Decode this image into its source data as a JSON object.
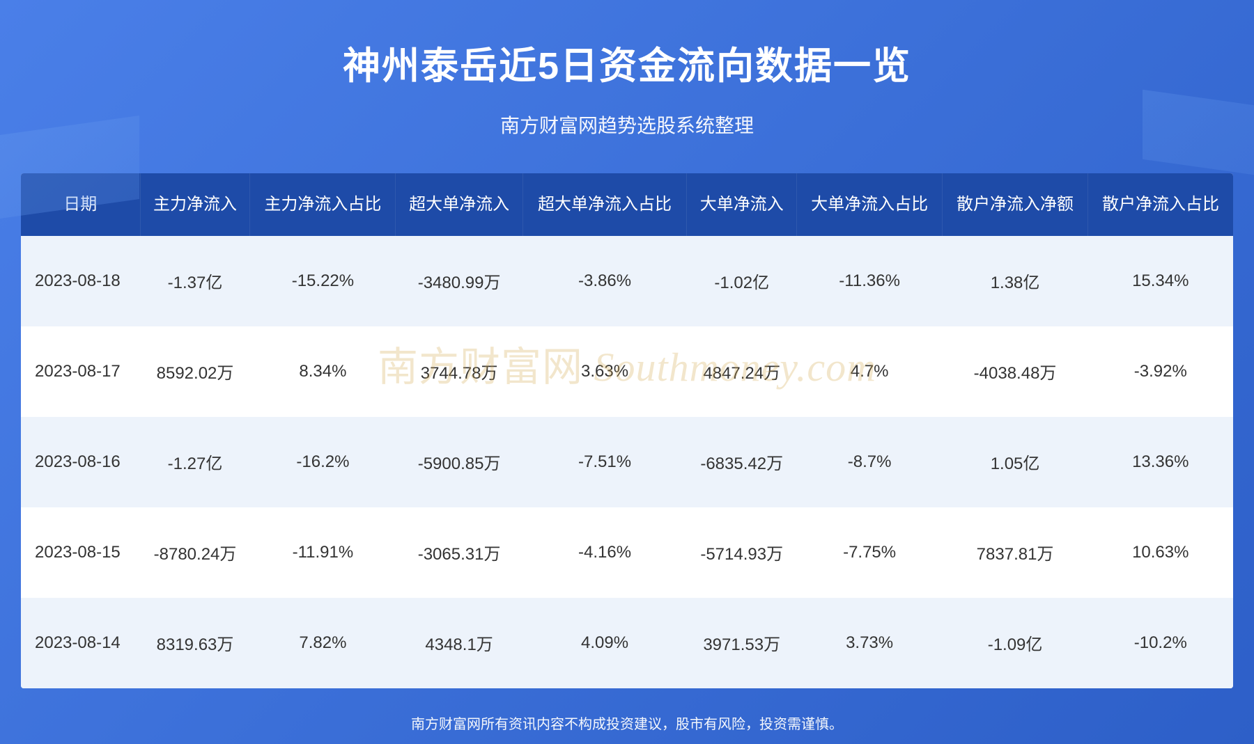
{
  "header": {
    "title": "神州泰岳近5日资金流向数据一览",
    "subtitle": "南方财富网趋势选股系统整理"
  },
  "table": {
    "columns": [
      "日期",
      "主力净流入",
      "主力净流入占比",
      "超大单净流入",
      "超大单净流入占比",
      "大单净流入",
      "大单净流入占比",
      "散户净流入净额",
      "散户净流入占比"
    ],
    "rows": [
      [
        "2023-08-18",
        "-1.37亿",
        "-15.22%",
        "-3480.99万",
        "-3.86%",
        "-1.02亿",
        "-11.36%",
        "1.38亿",
        "15.34%"
      ],
      [
        "2023-08-17",
        "8592.02万",
        "8.34%",
        "3744.78万",
        "3.63%",
        "4847.24万",
        "4.7%",
        "-4038.48万",
        "-3.92%"
      ],
      [
        "2023-08-16",
        "-1.27亿",
        "-16.2%",
        "-5900.85万",
        "-7.51%",
        "-6835.42万",
        "-8.7%",
        "1.05亿",
        "13.36%"
      ],
      [
        "2023-08-15",
        "-8780.24万",
        "-11.91%",
        "-3065.31万",
        "-4.16%",
        "-5714.93万",
        "-7.75%",
        "7837.81万",
        "10.63%"
      ],
      [
        "2023-08-14",
        "8319.63万",
        "7.82%",
        "4348.1万",
        "4.09%",
        "3971.53万",
        "3.73%",
        "-1.09亿",
        "-10.2%"
      ]
    ],
    "header_bg": "#1e4ba8",
    "row_odd_bg": "#edf3fb",
    "row_even_bg": "#ffffff",
    "text_color": "#333333",
    "header_text_color": "#ffffff",
    "header_fontsize": 24,
    "cell_fontsize": 24
  },
  "footer": {
    "disclaimer": "南方财富网所有资讯内容不构成投资建议，股市有风险，投资需谨慎。"
  },
  "watermark": {
    "text_cn": "南方财富网",
    "text_en": "Southmoney.com",
    "color": "#d4a84a"
  },
  "styling": {
    "page_bg_gradient": [
      "#4a7fe8",
      "#3b6fd8",
      "#2d5fc8"
    ],
    "title_color": "#ffffff",
    "title_fontsize": 54,
    "subtitle_fontsize": 28,
    "footer_fontsize": 20
  }
}
